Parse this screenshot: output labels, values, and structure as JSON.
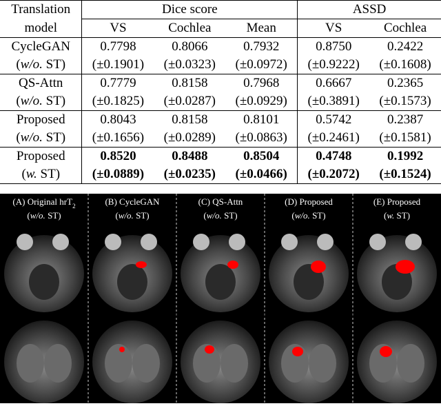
{
  "table": {
    "header": {
      "model": [
        "Translation",
        "model"
      ],
      "groups": [
        "Dice score",
        "ASSD"
      ],
      "columns": [
        "VS",
        "Cochlea",
        "Mean",
        "VS",
        "Cochlea"
      ]
    },
    "rows": [
      {
        "model": "CycleGAN",
        "qualifier": [
          "(",
          "w/o.",
          " ST)"
        ],
        "values": [
          "0.7798",
          "0.8066",
          "0.7932",
          "0.8750",
          "0.2422"
        ],
        "stds": [
          "(±0.1901)",
          "(±0.0323)",
          "(±0.0972)",
          "(±0.9222)",
          "(±0.1608)"
        ],
        "bold": false
      },
      {
        "model": "QS-Attn",
        "qualifier": [
          "(",
          "w/o.",
          " ST)"
        ],
        "values": [
          "0.7779",
          "0.8158",
          "0.7968",
          "0.6667",
          "0.2365"
        ],
        "stds": [
          "(±0.1825)",
          "(±0.0287)",
          "(±0.0929)",
          "(±0.3891)",
          "(±0.1573)"
        ],
        "bold": false
      },
      {
        "model": "Proposed",
        "qualifier": [
          "(",
          "w/o.",
          " ST)"
        ],
        "values": [
          "0.8043",
          "0.8158",
          "0.8101",
          "0.5742",
          "0.2387"
        ],
        "stds": [
          "(±0.1656)",
          "(±0.0289)",
          "(±0.0863)",
          "(±0.2461)",
          "(±0.1581)"
        ],
        "bold": false
      },
      {
        "model": "Proposed",
        "qualifier": [
          "(",
          "w.",
          " ST)"
        ],
        "values": [
          "0.8520",
          "0.8488",
          "0.8504",
          "0.4748",
          "0.1992"
        ],
        "stds": [
          "(±0.0889)",
          "(±0.0235)",
          "(±0.0466)",
          "(±0.2072)",
          "(±0.1524)"
        ],
        "bold": true
      }
    ]
  },
  "panels": [
    {
      "label": [
        "(A) Original hrT",
        "2"
      ],
      "qualifier": [
        "(",
        "w/o.",
        " ST)"
      ]
    },
    {
      "label": [
        "(B) CycleGAN"
      ],
      "qualifier": [
        "(",
        "w/o.",
        " ST)"
      ]
    },
    {
      "label": [
        "(C) QS-Attn"
      ],
      "qualifier": [
        "(",
        "w/o.",
        " ST)"
      ]
    },
    {
      "label": [
        "(D) Proposed"
      ],
      "qualifier": [
        "(",
        "w/o.",
        " ST)"
      ]
    },
    {
      "label": [
        "(E) Proposed"
      ],
      "qualifier": [
        "(",
        "w.",
        " ST)"
      ]
    }
  ]
}
